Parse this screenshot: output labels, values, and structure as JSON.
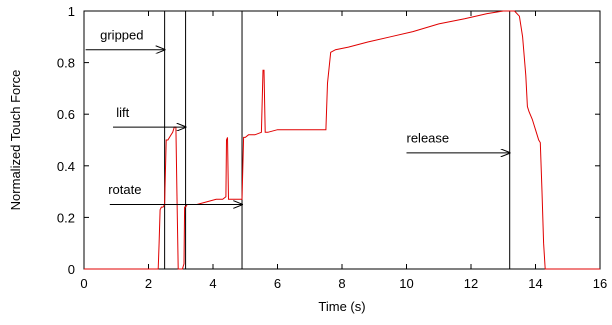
{
  "chart_data": {
    "type": "line",
    "title": "",
    "xlabel": "Time (s)",
    "ylabel": "Normalized Touch Force",
    "xlim": [
      0,
      16
    ],
    "ylim": [
      0,
      1
    ],
    "xticks": [
      "0",
      "2",
      "4",
      "6",
      "8",
      "10",
      "12",
      "14",
      "16"
    ],
    "yticks": [
      "0",
      "0.2",
      "0.4",
      "0.6",
      "0.8",
      "1"
    ],
    "grid": false,
    "legend": "none",
    "series": [
      {
        "color": "#e00000",
        "x": [
          0,
          2.3,
          2.33,
          2.36,
          2.4,
          2.45,
          2.5,
          2.55,
          2.6,
          2.65,
          2.7,
          2.75,
          2.8,
          2.85,
          2.88,
          2.92,
          3.05,
          3.1,
          3.12,
          3.15,
          3.2,
          3.3,
          3.5,
          3.8,
          4.1,
          4.3,
          4.4,
          4.42,
          4.45,
          4.48,
          4.5,
          4.6,
          4.75,
          4.85,
          4.9,
          4.95,
          5.0,
          5.1,
          5.3,
          5.5,
          5.55,
          5.58,
          5.62,
          5.7,
          6.0,
          6.5,
          7.0,
          7.3,
          7.5,
          7.55,
          7.65,
          7.8,
          8.2,
          8.8,
          9.5,
          10.2,
          11.0,
          11.8,
          12.5,
          13.0,
          13.2,
          13.35,
          13.5,
          13.6,
          13.7,
          13.75,
          13.8,
          13.9,
          14.0,
          14.1,
          14.15,
          14.2,
          14.25,
          14.3,
          14.35,
          16
        ],
        "y": [
          0,
          0,
          0.1,
          0.23,
          0.24,
          0.24,
          0.25,
          0.5,
          0.5,
          0.51,
          0.52,
          0.53,
          0.55,
          0.55,
          0.3,
          0,
          0,
          0.02,
          0.24,
          0.24,
          0.25,
          0.25,
          0.25,
          0.26,
          0.27,
          0.27,
          0.28,
          0.5,
          0.51,
          0.27,
          0.27,
          0.27,
          0.27,
          0.27,
          0.27,
          0.51,
          0.51,
          0.52,
          0.52,
          0.53,
          0.77,
          0.77,
          0.53,
          0.53,
          0.54,
          0.54,
          0.54,
          0.54,
          0.54,
          0.72,
          0.84,
          0.85,
          0.86,
          0.88,
          0.9,
          0.92,
          0.95,
          0.97,
          0.99,
          1.0,
          1.0,
          1.0,
          0.98,
          0.9,
          0.75,
          0.63,
          0.61,
          0.58,
          0.54,
          0.5,
          0.49,
          0.3,
          0.1,
          0,
          0,
          0
        ]
      }
    ],
    "events": [
      {
        "label": "gripped",
        "time": 2.5,
        "label_x": 0.5,
        "label_y": 0.89,
        "arrow_y": 0.85,
        "arrow_from": 0.05
      },
      {
        "label": "lift",
        "time": 3.15,
        "label_x": 1.0,
        "label_y": 0.59,
        "arrow_y": 0.55,
        "arrow_from": 0.9
      },
      {
        "label": "rotate",
        "time": 4.9,
        "label_x": 0.75,
        "label_y": 0.29,
        "arrow_y": 0.25,
        "arrow_from": 0.8
      },
      {
        "label": "release",
        "time": 13.2,
        "label_x": 10.0,
        "label_y": 0.49,
        "arrow_y": 0.45,
        "arrow_from": 10.0
      }
    ],
    "extra_lines": [
      2.5,
      3.15,
      4.9,
      13.2
    ]
  }
}
